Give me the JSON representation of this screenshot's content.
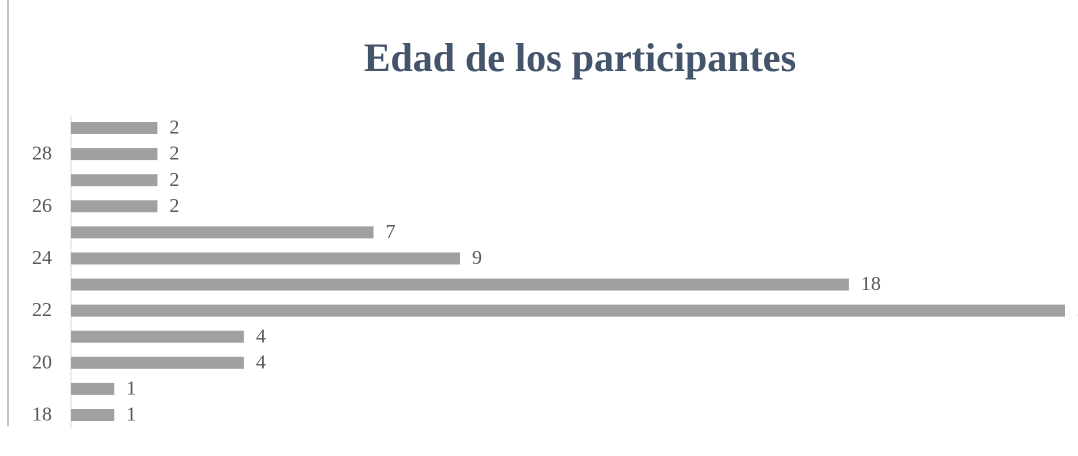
{
  "chart_data": {
    "type": "hbar",
    "title": "Edad de los participantes",
    "categories": [
      18,
      null,
      20,
      null,
      22,
      null,
      24,
      null,
      26,
      null,
      28,
      null
    ],
    "values": [
      1,
      1,
      4,
      4,
      23,
      18,
      9,
      7,
      2,
      2,
      2,
      2
    ],
    "color": "#a0a0a0"
  }
}
